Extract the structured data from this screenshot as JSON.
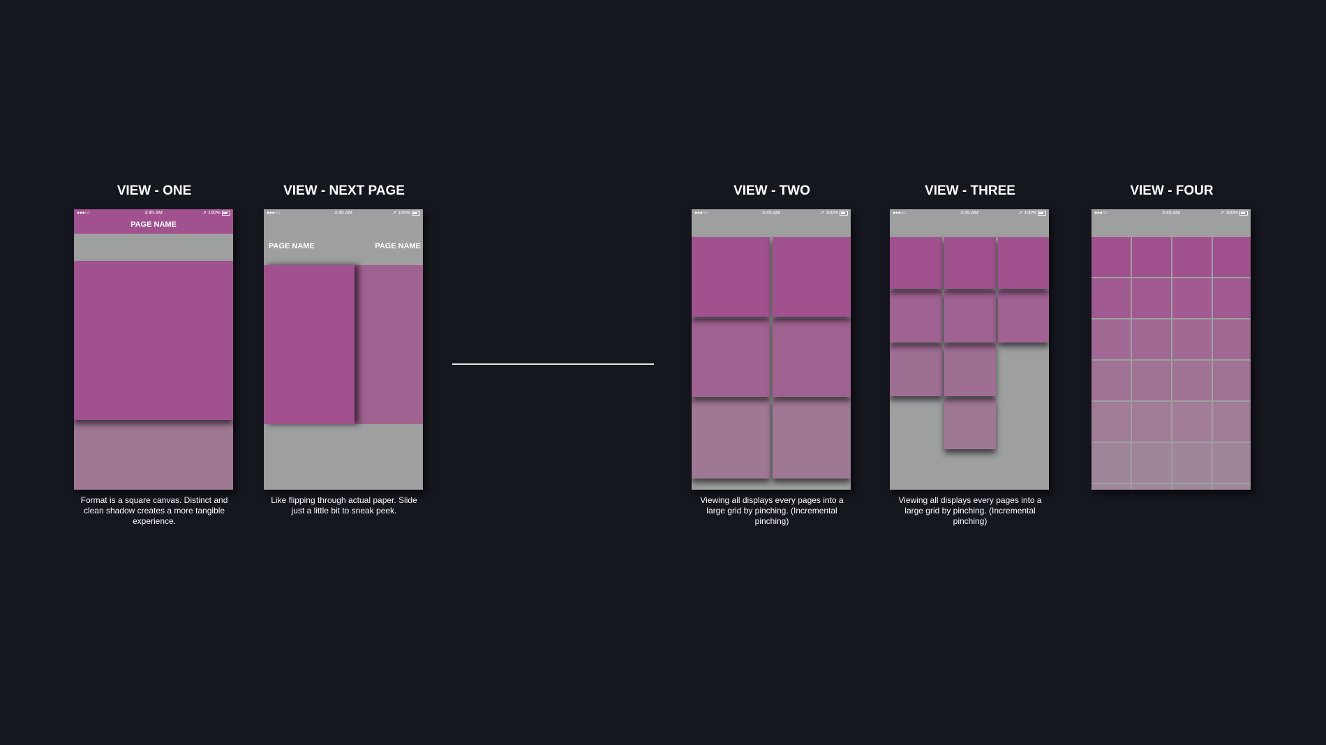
{
  "status_bar": {
    "signal": "●●●○○",
    "wifi": "≋",
    "time": "3:45 AM",
    "right": "➚ 100%"
  },
  "views": [
    {
      "title": "VIEW - ONE",
      "page_name": "PAGE NAME",
      "description": "Format is a square canvas. Distinct and clean shadow creates a more tangible experience."
    },
    {
      "title": "VIEW - NEXT PAGE",
      "page_name_left": "PAGE NAME",
      "page_name_right": "PAGE NAME",
      "description": "Like flipping through actual paper. Slide just a little bit to sneak peek."
    },
    {
      "title": "VIEW - TWO",
      "description": "Viewing all displays every pages into a large grid by pinching. (Incremental pinching)"
    },
    {
      "title": "VIEW - THREE",
      "description": "Viewing all displays every pages into a large grid by pinching. (Incremental pinching)"
    },
    {
      "title": "VIEW - FOUR"
    }
  ],
  "colors": {
    "background": "#15171e",
    "page": "#a2518f",
    "canvas": "#9ea0a0",
    "text": "#ffffff"
  }
}
